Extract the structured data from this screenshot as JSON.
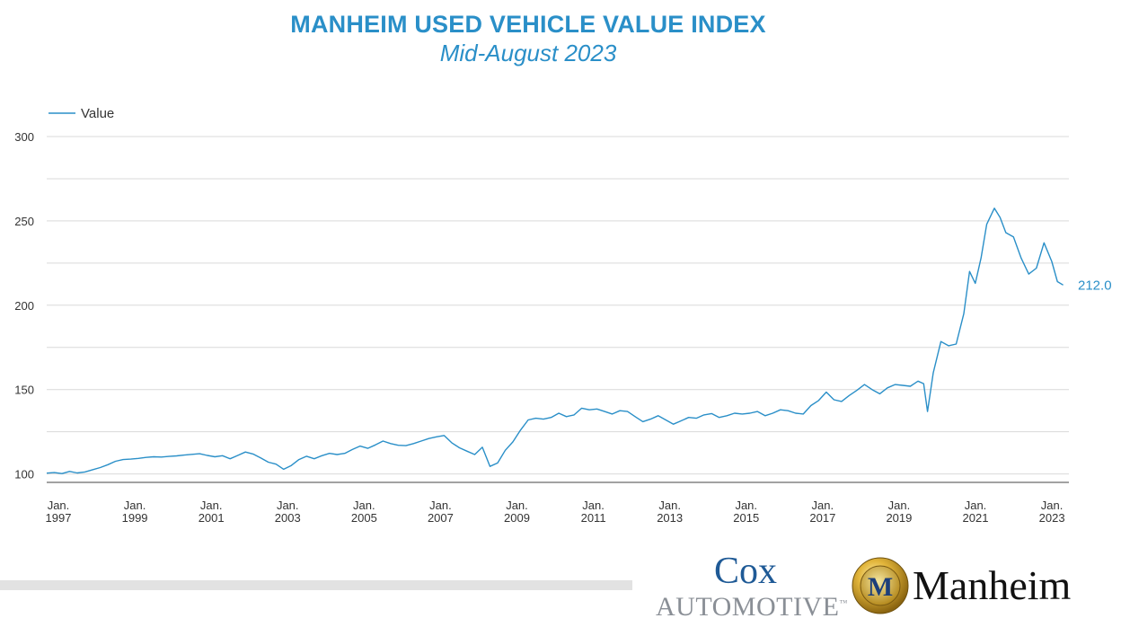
{
  "header": {
    "title": "MANHEIM USED VEHICLE VALUE INDEX",
    "subtitle": "Mid-August 2023"
  },
  "footer": {
    "cox_top": "Cox",
    "cox_bottom": "AUTOMOTIVE",
    "cox_tm": "™",
    "manheim_text": "Manheim",
    "manheim_badge": "M"
  },
  "colors": {
    "line": "#2a8fc8",
    "title": "#2a8fc8",
    "grid": "#d9d9d9"
  },
  "chart_data": {
    "type": "line",
    "title": "MANHEIM USED VEHICLE VALUE INDEX",
    "subtitle": "Mid-August 2023",
    "legend": {
      "position": "top-left",
      "entries": [
        "Value"
      ]
    },
    "ylim": [
      95,
      300
    ],
    "yticks": [
      100,
      150,
      200,
      250,
      300
    ],
    "xlim": [
      1997.0,
      2023.75
    ],
    "xticks": [
      {
        "x": 1997,
        "line1": "Jan.",
        "line2": "1997"
      },
      {
        "x": 1999,
        "line1": "Jan.",
        "line2": "1999"
      },
      {
        "x": 2001,
        "line1": "Jan.",
        "line2": "2001"
      },
      {
        "x": 2003,
        "line1": "Jan.",
        "line2": "2003"
      },
      {
        "x": 2005,
        "line1": "Jan.",
        "line2": "2005"
      },
      {
        "x": 2007,
        "line1": "Jan.",
        "line2": "2007"
      },
      {
        "x": 2009,
        "line1": "Jan.",
        "line2": "2009"
      },
      {
        "x": 2011,
        "line1": "Jan.",
        "line2": "2011"
      },
      {
        "x": 2013,
        "line1": "Jan.",
        "line2": "2013"
      },
      {
        "x": 2015,
        "line1": "Jan.",
        "line2": "2015"
      },
      {
        "x": 2017,
        "line1": "Jan.",
        "line2": "2017"
      },
      {
        "x": 2019,
        "line1": "Jan.",
        "line2": "2019"
      },
      {
        "x": 2021,
        "line1": "Jan.",
        "line2": "2021"
      },
      {
        "x": 2023,
        "line1": "Jan.",
        "line2": "2023"
      }
    ],
    "grid": true,
    "last_value_label": "212.0",
    "series": [
      {
        "name": "Value",
        "points": [
          [
            1997.0,
            100.5
          ],
          [
            1997.2,
            100.8
          ],
          [
            1997.4,
            100.2
          ],
          [
            1997.6,
            101.5
          ],
          [
            1997.8,
            100.6
          ],
          [
            1998.0,
            101.2
          ],
          [
            1998.2,
            102.5
          ],
          [
            1998.4,
            103.8
          ],
          [
            1998.6,
            105.5
          ],
          [
            1998.8,
            107.5
          ],
          [
            1999.0,
            108.5
          ],
          [
            1999.2,
            108.8
          ],
          [
            1999.4,
            109.2
          ],
          [
            1999.6,
            109.8
          ],
          [
            1999.8,
            110.2
          ],
          [
            2000.0,
            110.0
          ],
          [
            2000.2,
            110.4
          ],
          [
            2000.4,
            110.7
          ],
          [
            2000.6,
            111.2
          ],
          [
            2000.8,
            111.6
          ],
          [
            2001.0,
            112.0
          ],
          [
            2001.2,
            111.0
          ],
          [
            2001.4,
            110.2
          ],
          [
            2001.6,
            110.8
          ],
          [
            2001.8,
            109.0
          ],
          [
            2002.0,
            111.0
          ],
          [
            2002.2,
            113.0
          ],
          [
            2002.4,
            111.8
          ],
          [
            2002.6,
            109.5
          ],
          [
            2002.8,
            107.0
          ],
          [
            2003.0,
            105.8
          ],
          [
            2003.2,
            102.8
          ],
          [
            2003.4,
            105.0
          ],
          [
            2003.6,
            108.5
          ],
          [
            2003.8,
            110.5
          ],
          [
            2004.0,
            109.0
          ],
          [
            2004.2,
            110.8
          ],
          [
            2004.4,
            112.2
          ],
          [
            2004.6,
            111.5
          ],
          [
            2004.8,
            112.2
          ],
          [
            2005.0,
            114.5
          ],
          [
            2005.2,
            116.5
          ],
          [
            2005.4,
            115.2
          ],
          [
            2005.6,
            117.2
          ],
          [
            2005.8,
            119.5
          ],
          [
            2006.0,
            118.0
          ],
          [
            2006.2,
            117.0
          ],
          [
            2006.4,
            116.8
          ],
          [
            2006.6,
            118.0
          ],
          [
            2006.8,
            119.5
          ],
          [
            2007.0,
            121.0
          ],
          [
            2007.2,
            122.0
          ],
          [
            2007.4,
            122.8
          ],
          [
            2007.6,
            118.5
          ],
          [
            2007.8,
            115.5
          ],
          [
            2008.0,
            113.5
          ],
          [
            2008.2,
            111.5
          ],
          [
            2008.4,
            115.8
          ],
          [
            2008.6,
            104.5
          ],
          [
            2008.8,
            106.5
          ],
          [
            2009.0,
            114.0
          ],
          [
            2009.2,
            119.0
          ],
          [
            2009.4,
            126.0
          ],
          [
            2009.6,
            132.0
          ],
          [
            2009.8,
            133.0
          ],
          [
            2010.0,
            132.5
          ],
          [
            2010.2,
            133.5
          ],
          [
            2010.4,
            136.0
          ],
          [
            2010.6,
            134.0
          ],
          [
            2010.8,
            135.0
          ],
          [
            2011.0,
            139.0
          ],
          [
            2011.2,
            138.0
          ],
          [
            2011.4,
            138.5
          ],
          [
            2011.6,
            137.0
          ],
          [
            2011.8,
            135.5
          ],
          [
            2012.0,
            137.5
          ],
          [
            2012.2,
            137.0
          ],
          [
            2012.4,
            134.0
          ],
          [
            2012.6,
            131.0
          ],
          [
            2012.8,
            132.5
          ],
          [
            2013.0,
            134.5
          ],
          [
            2013.2,
            132.0
          ],
          [
            2013.4,
            129.5
          ],
          [
            2013.6,
            131.5
          ],
          [
            2013.8,
            133.5
          ],
          [
            2014.0,
            133.0
          ],
          [
            2014.2,
            135.0
          ],
          [
            2014.4,
            135.8
          ],
          [
            2014.6,
            133.5
          ],
          [
            2014.8,
            134.5
          ],
          [
            2015.0,
            136.0
          ],
          [
            2015.2,
            135.5
          ],
          [
            2015.4,
            136.0
          ],
          [
            2015.6,
            137.0
          ],
          [
            2015.8,
            134.5
          ],
          [
            2016.0,
            136.0
          ],
          [
            2016.2,
            138.0
          ],
          [
            2016.4,
            137.5
          ],
          [
            2016.6,
            136.0
          ],
          [
            2016.8,
            135.5
          ],
          [
            2017.0,
            140.5
          ],
          [
            2017.2,
            143.5
          ],
          [
            2017.4,
            148.5
          ],
          [
            2017.6,
            144.0
          ],
          [
            2017.8,
            143.0
          ],
          [
            2018.0,
            146.5
          ],
          [
            2018.2,
            149.5
          ],
          [
            2018.4,
            153.0
          ],
          [
            2018.6,
            150.0
          ],
          [
            2018.8,
            147.5
          ],
          [
            2019.0,
            151.0
          ],
          [
            2019.2,
            153.0
          ],
          [
            2019.4,
            152.5
          ],
          [
            2019.6,
            152.0
          ],
          [
            2019.8,
            155.0
          ],
          [
            2019.95,
            153.5
          ],
          [
            2020.05,
            137.0
          ],
          [
            2020.2,
            160.0
          ],
          [
            2020.4,
            178.5
          ],
          [
            2020.6,
            176.0
          ],
          [
            2020.8,
            177.0
          ],
          [
            2021.0,
            195.0
          ],
          [
            2021.15,
            220.0
          ],
          [
            2021.3,
            213.0
          ],
          [
            2021.45,
            228.0
          ],
          [
            2021.6,
            248.0
          ],
          [
            2021.8,
            257.5
          ],
          [
            2021.95,
            252.0
          ],
          [
            2022.1,
            243.0
          ],
          [
            2022.3,
            240.5
          ],
          [
            2022.5,
            228.0
          ],
          [
            2022.7,
            218.5
          ],
          [
            2022.9,
            222.0
          ],
          [
            2023.1,
            237.0
          ],
          [
            2023.3,
            226.0
          ],
          [
            2023.45,
            214.0
          ],
          [
            2023.6,
            212.0
          ]
        ]
      }
    ]
  }
}
